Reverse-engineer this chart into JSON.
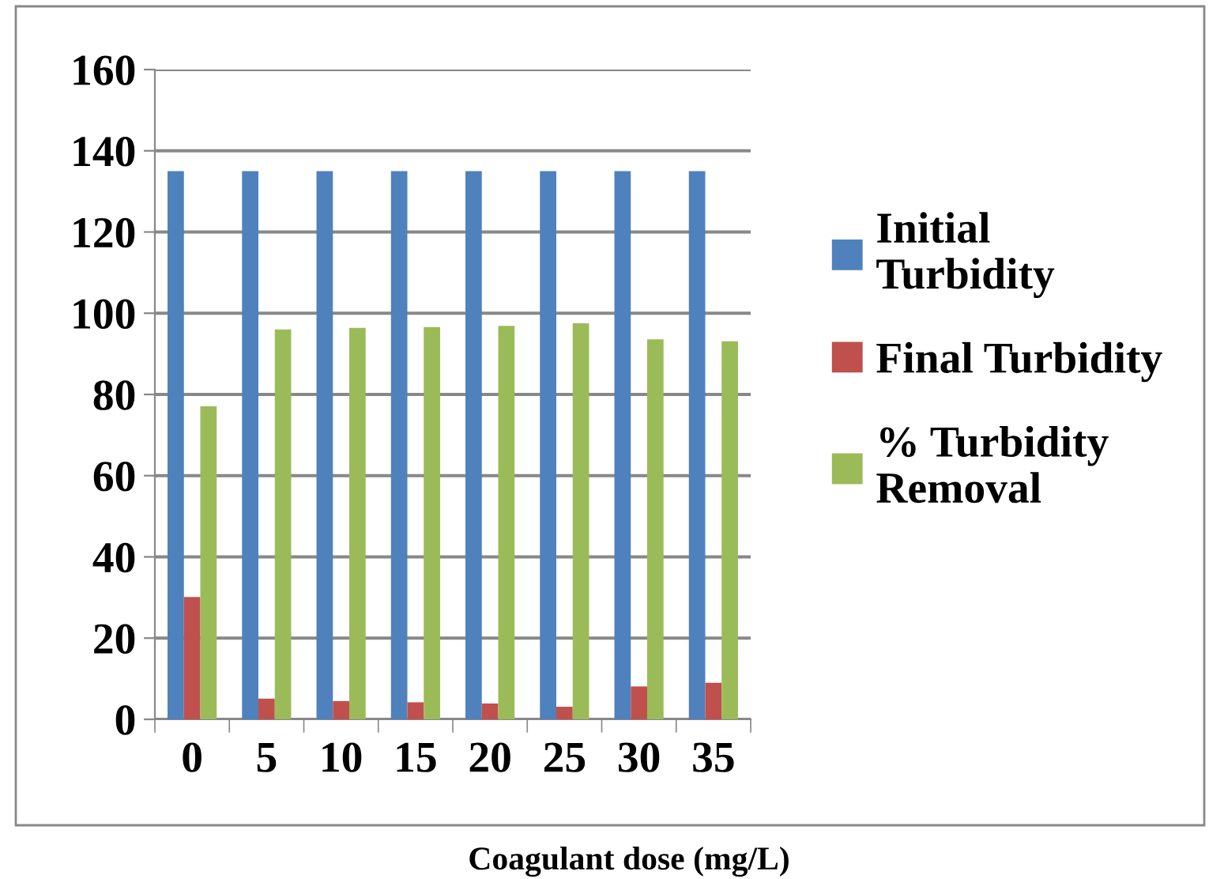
{
  "chart_data": {
    "type": "bar",
    "xlabel": "Coagulant dose (mg/L)",
    "categories": [
      "0",
      "5",
      "10",
      "15",
      "20",
      "25",
      "30",
      "35"
    ],
    "series": [
      {
        "name": "Initial Turbidity",
        "color": "#4f81bd",
        "values": [
          135,
          135,
          135,
          135,
          135,
          135,
          135,
          135
        ]
      },
      {
        "name": "Final Turbidity",
        "color": "#c0504d",
        "values": [
          30.1,
          5.1,
          4.5,
          4.2,
          3.9,
          3.1,
          8.1,
          9.0
        ]
      },
      {
        "name": "% Turbidity Removal",
        "color": "#9bbb59",
        "values": [
          77.1,
          96.0,
          96.4,
          96.6,
          96.9,
          97.5,
          93.6,
          93.1
        ]
      }
    ],
    "ylim": [
      0,
      160
    ],
    "yticks": [
      0,
      20,
      40,
      60,
      80,
      100,
      120,
      140,
      160
    ],
    "grid": "y",
    "legend": "right"
  }
}
